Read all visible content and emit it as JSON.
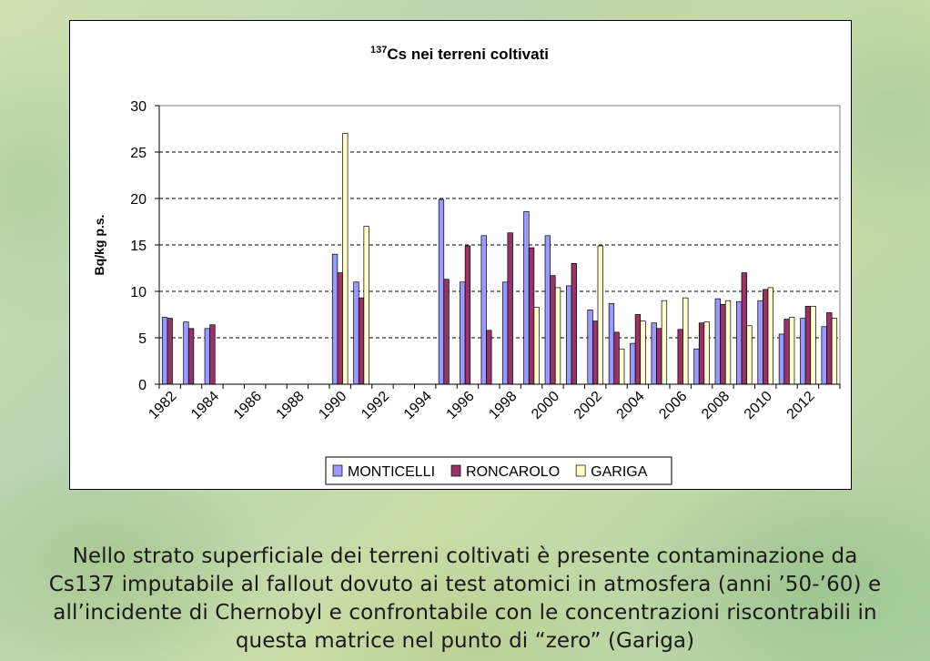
{
  "chart_data": {
    "type": "bar",
    "title_sup": "137",
    "title": "Cs nei terreni coltivati",
    "ylabel": "Bq/kg p.s.",
    "xlabel": "",
    "ylim": [
      0,
      30
    ],
    "yticks": [
      "0",
      "5",
      "10",
      "15",
      "20",
      "25",
      "30"
    ],
    "grid": "horizontal dashed",
    "legend_position": "bottom",
    "categories": [
      "1982",
      "1983",
      "1984",
      "1985",
      "1986",
      "1987",
      "1988",
      "1989",
      "1990",
      "1991",
      "1992",
      "1993",
      "1994",
      "1995",
      "1996",
      "1997",
      "1998",
      "1999",
      "2000",
      "2001",
      "2002",
      "2003",
      "2004",
      "2005",
      "2006",
      "2007",
      "2008",
      "2009",
      "2010",
      "2011",
      "2012",
      "2013"
    ],
    "tick_labels": [
      "1982",
      "1984",
      "1986",
      "1988",
      "1990",
      "1992",
      "1994",
      "1996",
      "1998",
      "2000",
      "2002",
      "2004",
      "2006",
      "2008",
      "2010",
      "2012"
    ],
    "series": [
      {
        "name": "MONTICELLI",
        "color": "#9999ff",
        "values": [
          7.2,
          6.7,
          6.0,
          null,
          null,
          null,
          null,
          null,
          14.0,
          11.0,
          null,
          null,
          null,
          19.9,
          11.0,
          16.0,
          11.0,
          18.6,
          16.0,
          10.6,
          8.0,
          8.7,
          4.4,
          6.6,
          0.0,
          3.8,
          9.2,
          8.9,
          9.0,
          5.4,
          7.1,
          6.2
        ]
      },
      {
        "name": "RONCAROLO",
        "color": "#993366",
        "values": [
          7.1,
          6.0,
          6.4,
          null,
          null,
          null,
          null,
          null,
          12.0,
          9.3,
          null,
          null,
          null,
          11.3,
          14.9,
          5.8,
          16.3,
          14.7,
          11.7,
          13.0,
          6.8,
          5.6,
          7.5,
          6.0,
          5.9,
          6.6,
          8.6,
          12.0,
          10.2,
          7.0,
          8.4,
          7.7
        ]
      },
      {
        "name": "GARIGA",
        "color": "#ffffcc",
        "values": [
          null,
          null,
          null,
          null,
          null,
          null,
          null,
          null,
          27.0,
          17.0,
          null,
          null,
          null,
          null,
          null,
          null,
          null,
          8.3,
          10.4,
          null,
          14.9,
          3.8,
          6.8,
          9.0,
          9.3,
          6.7,
          9.0,
          6.3,
          10.4,
          7.2,
          8.4,
          7.1
        ]
      }
    ]
  },
  "caption": {
    "line1": "Nello strato superficiale dei terreni coltivati è presente contaminazione da",
    "line2": "Cs137 imputabile al fallout dovuto ai test atomici in atmosfera (anni ’50-’60) e",
    "line3": "all’incidente di Chernobyl e confrontabile con le concentrazioni riscontrabili in",
    "line4": "questa matrice nel punto di “zero” (Gariga)"
  }
}
